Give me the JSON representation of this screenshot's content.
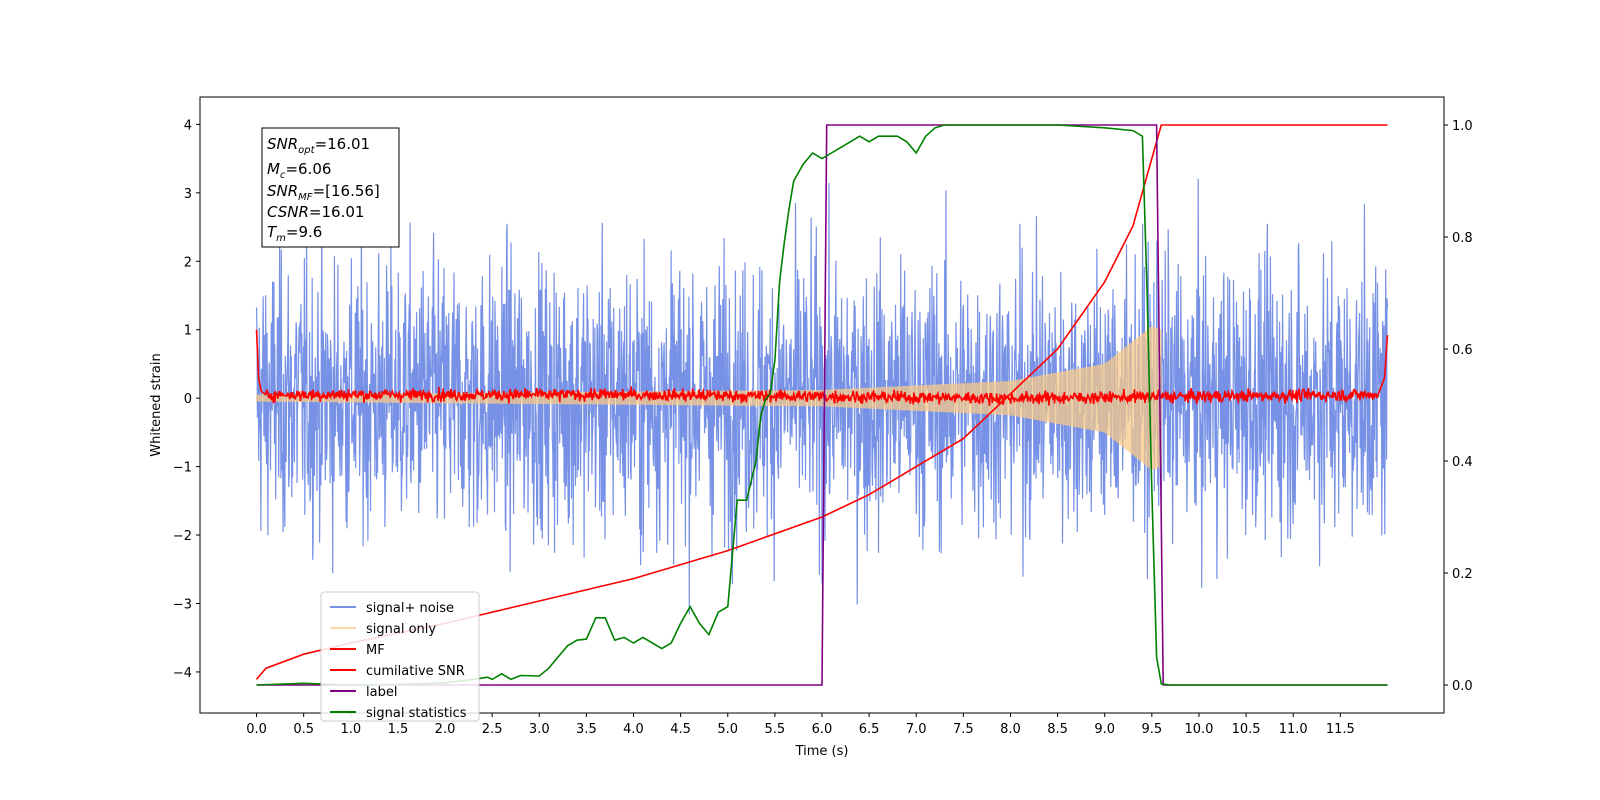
{
  "chart_data": {
    "type": "line",
    "xlabel": "Time (s)",
    "ylabel": "Whitened strain",
    "xlim": [
      -0.6,
      12.6
    ],
    "ylim": [
      -4.6,
      4.4
    ],
    "ylim_right": [
      -0.05,
      1.05
    ],
    "x_ticks": [
      "0.0",
      "0.5",
      "1.0",
      "1.5",
      "2.0",
      "2.5",
      "3.0",
      "3.5",
      "4.0",
      "4.5",
      "5.0",
      "5.5",
      "6.0",
      "6.5",
      "7.0",
      "7.5",
      "8.0",
      "8.5",
      "9.0",
      "9.5",
      "10.0",
      "10.5",
      "11.0",
      "11.5"
    ],
    "y_ticks_left": [
      "4",
      "3",
      "2",
      "1",
      "0",
      "−1",
      "−2",
      "−3",
      "−4"
    ],
    "y_ticks_right": [
      "1.0",
      "0.8",
      "0.6",
      "0.4",
      "0.2",
      "0.0"
    ],
    "grid": false,
    "legend_position": "lower-left",
    "annotation": {
      "snr_opt": "=16.01",
      "mc": "=6.06",
      "snr_mf": "=[16.56]",
      "csnr": "=16.01",
      "tm": "=9.6"
    },
    "series": [
      {
        "name": "signal+ noise",
        "color": "#7691e6",
        "axis": "left",
        "style": "noise band",
        "x_range": [
          0,
          12
        ],
        "amplitude_std": 1.0
      },
      {
        "name": "signal only",
        "color": "#f8c98a",
        "axis": "left",
        "style": "chirp",
        "x_range": [
          0,
          9.6
        ],
        "envelope": [
          [
            0,
            0.05
          ],
          [
            6,
            0.12
          ],
          [
            8,
            0.25
          ],
          [
            9,
            0.5
          ],
          [
            9.5,
            1.05
          ],
          [
            9.6,
            1.0
          ]
        ]
      },
      {
        "name": "MF",
        "color": "#ff0000",
        "axis": "left",
        "style": "line",
        "x": [
          0,
          0.02,
          0.05,
          0.1,
          1,
          4,
          8,
          11.9,
          11.97,
          12.0
        ],
        "y": [
          1.0,
          0.3,
          0.1,
          0.05,
          0.05,
          0.05,
          0.0,
          0.05,
          0.3,
          0.92
        ]
      },
      {
        "name": "cumilative SNR",
        "color": "#ff0000",
        "axis": "right",
        "x": [
          0,
          0.1,
          0.5,
          1.0,
          2.0,
          3.0,
          4.0,
          5.0,
          6.0,
          6.5,
          7.0,
          7.5,
          8.0,
          8.5,
          9.0,
          9.3,
          9.5,
          9.6,
          12.0
        ],
        "y": [
          0.01,
          0.03,
          0.055,
          0.075,
          0.11,
          0.15,
          0.19,
          0.24,
          0.3,
          0.34,
          0.39,
          0.44,
          0.52,
          0.6,
          0.72,
          0.82,
          0.94,
          1.0,
          1.0
        ]
      },
      {
        "name": "label",
        "color": "#800080",
        "axis": "right",
        "x": [
          0,
          6.0,
          6.05,
          9.55,
          9.62,
          12.0
        ],
        "y": [
          0,
          0,
          1.0,
          1.0,
          0,
          0
        ]
      },
      {
        "name": "signal statistics",
        "color": "#008000",
        "axis": "right",
        "x": [
          0,
          0.5,
          1.0,
          1.5,
          2.0,
          2.3,
          2.45,
          2.5,
          2.6,
          2.7,
          2.8,
          3.0,
          3.1,
          3.2,
          3.3,
          3.4,
          3.5,
          3.6,
          3.7,
          3.8,
          3.9,
          4.0,
          4.1,
          4.2,
          4.3,
          4.4,
          4.5,
          4.6,
          4.7,
          4.8,
          4.9,
          5.0,
          5.1,
          5.15,
          5.2,
          5.3,
          5.35,
          5.4,
          5.45,
          5.5,
          5.55,
          5.6,
          5.65,
          5.7,
          5.8,
          5.9,
          6.0,
          6.1,
          6.2,
          6.3,
          6.4,
          6.5,
          6.6,
          6.7,
          6.8,
          6.9,
          7.0,
          7.1,
          7.2,
          7.3,
          7.5,
          8.0,
          8.5,
          9.0,
          9.3,
          9.4,
          9.45,
          9.5,
          9.55,
          9.6,
          9.7,
          12.0
        ],
        "y": [
          0.0,
          0.003,
          0.0,
          0.001,
          0.004,
          0.01,
          0.014,
          0.01,
          0.02,
          0.01,
          0.017,
          0.016,
          0.03,
          0.05,
          0.07,
          0.08,
          0.082,
          0.12,
          0.12,
          0.08,
          0.085,
          0.075,
          0.085,
          0.075,
          0.065,
          0.075,
          0.11,
          0.14,
          0.11,
          0.09,
          0.13,
          0.14,
          0.33,
          0.33,
          0.33,
          0.4,
          0.48,
          0.51,
          0.52,
          0.58,
          0.72,
          0.79,
          0.85,
          0.9,
          0.93,
          0.95,
          0.94,
          0.95,
          0.96,
          0.97,
          0.98,
          0.97,
          0.98,
          0.98,
          0.98,
          0.97,
          0.95,
          0.98,
          0.995,
          1.0,
          1.0,
          1.0,
          1.0,
          0.995,
          0.99,
          0.98,
          0.7,
          0.35,
          0.05,
          0.002,
          0.0,
          0.0
        ]
      }
    ]
  }
}
